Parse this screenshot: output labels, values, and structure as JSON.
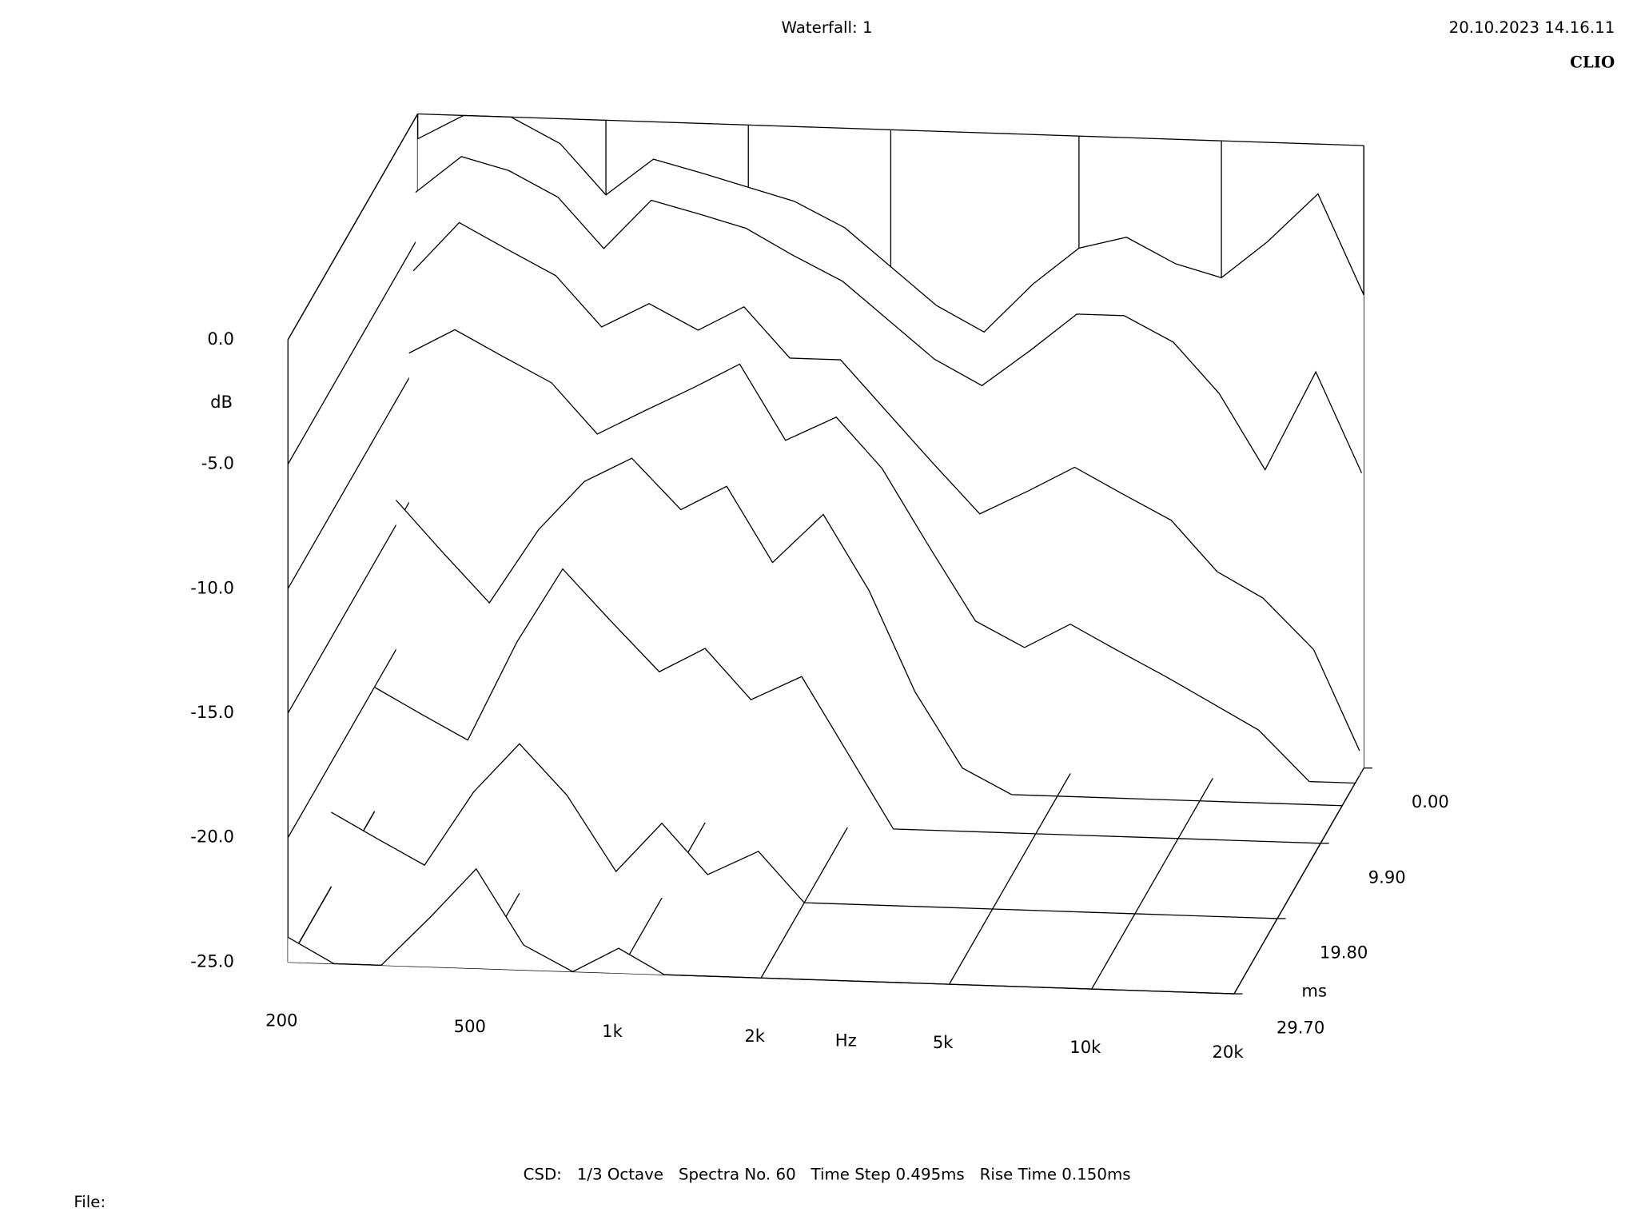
{
  "chart_data": {
    "type": "waterfall",
    "title": "Waterfall: 1",
    "timestamp": "20.10.2023 14.16.11",
    "brand": "CLIO",
    "footer": "CSD:   1/3 Octave   Spectra No. 60   Time Step 0.495ms   Rise Time 0.150ms",
    "file_label": "File:",
    "x_label": "Hz",
    "y_label": "dB",
    "z_label": "ms",
    "log_x": true,
    "xlim": [
      200,
      20000
    ],
    "xticks": [
      200,
      500,
      {
        "value": 1000,
        "label": "1k"
      },
      {
        "value": 2000,
        "label": "2k"
      },
      {
        "value": 5000,
        "label": "5k"
      },
      {
        "value": 10000,
        "label": "10k"
      },
      {
        "value": 20000,
        "label": "20k"
      }
    ],
    "ylim": [
      -25,
      0
    ],
    "yticks": [
      {
        "value": 0,
        "label": "0.0"
      },
      {
        "value": -5,
        "label": "-5.0"
      },
      {
        "value": -10,
        "label": "-10.0"
      },
      {
        "value": -15,
        "label": "-15.0"
      },
      {
        "value": -20,
        "label": "-20.0"
      },
      {
        "value": -25,
        "label": "-25.0"
      }
    ],
    "zlim": [
      0,
      29.7
    ],
    "zticks": [
      {
        "value": 0,
        "label": "0.00"
      },
      {
        "value": 9.9,
        "label": "9.90"
      },
      {
        "value": 19.8,
        "label": "19.80"
      },
      {
        "value": 29.7,
        "label": "29.70"
      }
    ],
    "x": [
      200,
      250,
      315,
      400,
      500,
      630,
      800,
      1000,
      1250,
      1600,
      2000,
      2500,
      3150,
      4000,
      5000,
      6300,
      8000,
      10000,
      12500,
      16000,
      20000
    ],
    "slices": [
      {
        "t": 0,
        "values": [
          -1,
          0,
          0,
          -1,
          -3,
          -1.5,
          -2,
          -2.5,
          -3,
          -4,
          -5.5,
          -7,
          -8,
          -6,
          -4.5,
          -4,
          -5,
          -5.5,
          -4,
          -2,
          -6
        ]
      },
      {
        "t": 0.495,
        "values": [
          -3,
          -1.5,
          -2,
          -3,
          -5,
          -3,
          -3.5,
          -4,
          -5,
          -6,
          -7.5,
          -9,
          -10,
          -8.5,
          -7,
          -7,
          -8,
          -10,
          -13,
          -9,
          -13
        ]
      },
      {
        "t": 0.99,
        "values": [
          -6,
          -4,
          -5,
          -6,
          -8,
          -7,
          -8,
          -7,
          -9,
          -9,
          -11,
          -13,
          -15,
          -14,
          -13,
          -14,
          -15,
          -17,
          -18,
          -20,
          -24
        ]
      },
      {
        "t": 1.98,
        "values": [
          -9,
          -8,
          -9,
          -10,
          -12,
          -11,
          -10,
          -9,
          -12,
          -11,
          -13,
          -16,
          -19,
          -20,
          -19,
          -20,
          -21,
          -22,
          -23,
          -25,
          -25
        ]
      },
      {
        "t": 4.95,
        "values": [
          -14,
          -16,
          -18,
          -15,
          -13,
          -12,
          -14,
          -13,
          -16,
          -14,
          -17,
          -21,
          -24,
          -25,
          -25,
          -25,
          -25,
          -25,
          -25,
          -25,
          -25
        ]
      },
      {
        "t": 9.9,
        "values": [
          -20,
          -21,
          -22,
          -18,
          -15,
          -17,
          -19,
          -18,
          -20,
          -19,
          -22,
          -25,
          -25,
          -25,
          -25,
          -25,
          -25,
          -25,
          -25,
          -25,
          -25
        ]
      },
      {
        "t": 19.8,
        "values": [
          -22,
          -23,
          -24,
          -21,
          -19,
          -21,
          -24,
          -22,
          -24,
          -23,
          -25,
          -25,
          -25,
          -25,
          -25,
          -25,
          -25,
          -25,
          -25,
          -25,
          -25
        ]
      },
      {
        "t": 29.7,
        "values": [
          -24,
          -25,
          -25,
          -23,
          -21,
          -24,
          -25,
          -24,
          -25,
          -25,
          -25,
          -25,
          -25,
          -25,
          -25,
          -25,
          -25,
          -25,
          -25,
          -25,
          -25
        ]
      }
    ]
  }
}
